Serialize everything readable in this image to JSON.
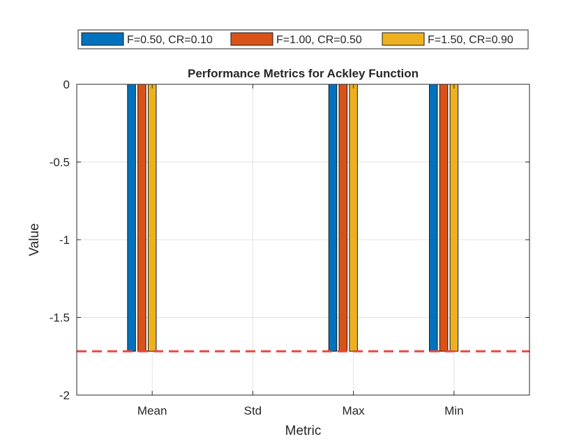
{
  "chart_data": {
    "type": "bar",
    "title": "Performance Metrics for Ackley Function",
    "xlabel": "Metric",
    "ylabel": "Value",
    "categories": [
      "Mean",
      "Std",
      "Max",
      "Min"
    ],
    "ylim": [
      -2,
      0
    ],
    "yticks": [
      0,
      -0.5,
      -1,
      -1.5,
      -2
    ],
    "ytick_labels": [
      "0",
      "-0.5",
      "-1",
      "-1.5",
      "-2"
    ],
    "grid": true,
    "legend_position": "top",
    "series": [
      {
        "name": "F=0.50, CR=0.10",
        "color": "#0072BD",
        "values": [
          -1.718,
          0,
          -1.718,
          -1.718
        ]
      },
      {
        "name": "F=1.00, CR=0.50",
        "color": "#D95319",
        "values": [
          -1.718,
          0,
          -1.718,
          -1.718
        ]
      },
      {
        "name": "F=1.50, CR=0.90",
        "color": "#EDB120",
        "values": [
          -1.718,
          0,
          -1.718,
          -1.718
        ]
      }
    ],
    "reference_line": {
      "y": -1.718,
      "color": "#E8463F",
      "style": "dashed"
    }
  }
}
